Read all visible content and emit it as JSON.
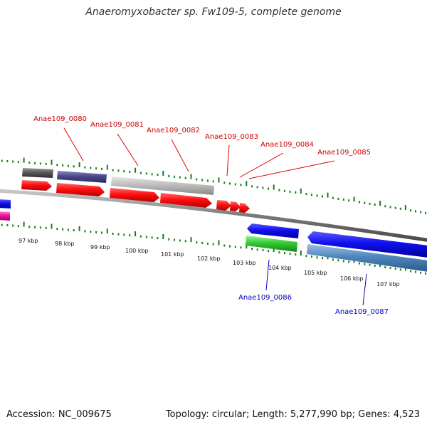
{
  "title": "Anaeromyxobacter sp. Fw109-5, complete genome",
  "footer": {
    "accession": "Accession: NC_009675",
    "summary": "Topology: circular; Length: 5,277,990 bp; Genes: 4,523"
  },
  "colors": {
    "forward_label": "#cc0000",
    "reverse_label": "#0000bb",
    "tick": "#1a7a1a",
    "backbone": "#7a7a7a"
  },
  "kbp_ticks": [
    "97 kbp",
    "98 kbp",
    "99 kbp",
    "100 kbp",
    "101 kbp",
    "102 kbp",
    "103 kbp",
    "104 kbp",
    "105 kbp",
    "106 kbp",
    "107 kbp"
  ],
  "upper_labels": [
    "Anae109_0080",
    "Anae109_0081",
    "Anae109_0082",
    "Anae109_0083",
    "Anae109_0084",
    "Anae109_0085"
  ],
  "lower_labels": [
    "Anae109_0086",
    "Anae109_0087"
  ]
}
